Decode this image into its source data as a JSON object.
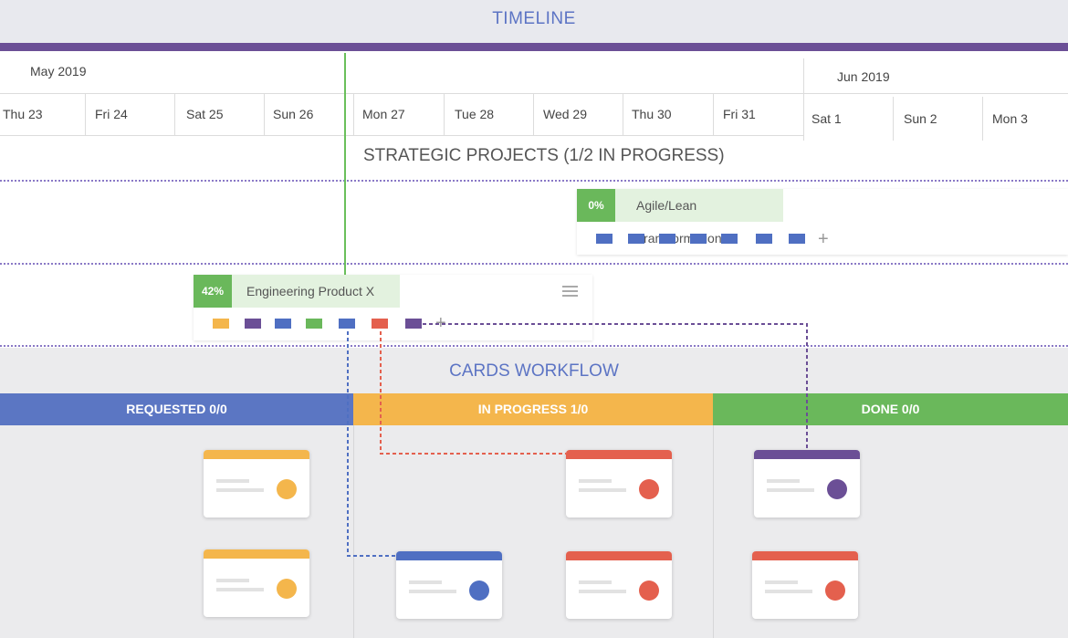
{
  "timeline": {
    "title": "TIMELINE",
    "months": {
      "may": "May 2019",
      "jun": "Jun 2019"
    },
    "days": [
      "Thu 23",
      "Fri 24",
      "Sat 25",
      "Sun 26",
      "Mon 27",
      "Tue 28",
      "Wed 29",
      "Thu 30",
      "Fri 31",
      "Sat 1",
      "Sun 2",
      "Mon 3"
    ]
  },
  "strategic": {
    "title": "STRATEGIC PROJECTS (1/2 IN PROGRESS)",
    "projects": [
      {
        "progress": "0%",
        "name": "Agile/Lean Transformation",
        "squares": [
          "#4f6fc2",
          "#4f6fc2",
          "#4f6fc2",
          "#4f6fc2",
          "#4f6fc2",
          "#4f6fc2",
          "#4f6fc2"
        ]
      },
      {
        "progress": "42%",
        "name": "Engineering Product X",
        "squares": [
          "#f4b64c",
          "#6b4f96",
          "#4f6fc2",
          "#6ab85b",
          "#4f6fc2",
          "#e4604e",
          "#6b4f96"
        ]
      }
    ],
    "plus": "+",
    "menu_icon": "hamburger-icon"
  },
  "workflow": {
    "title": "CARDS WORKFLOW",
    "columns": [
      {
        "label": "REQUESTED 0/0",
        "color": "#5b76c3"
      },
      {
        "label": "IN PROGRESS 1/0",
        "color": "#f4b64c"
      },
      {
        "label": "DONE 0/0",
        "color": "#6ab85b"
      }
    ]
  },
  "colors": {
    "accent": "#5c74c4",
    "timeline_bar": "#6b4f96",
    "today_line": "#6abf5b",
    "yellow": "#f4b64c",
    "red": "#e4604e",
    "blue": "#4f6fc2",
    "purple": "#6b4f96",
    "green": "#6ab85b"
  }
}
